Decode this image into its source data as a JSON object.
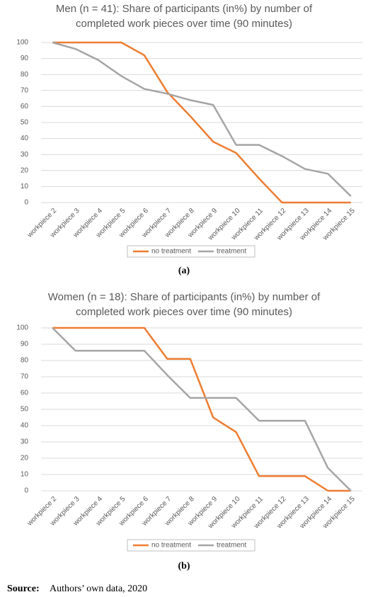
{
  "chart_data": [
    {
      "type": "line",
      "title": [
        "Men (n = 41): Share of participants (in%) by number of",
        "completed work pieces over time (90 minutes)"
      ],
      "categories": [
        "workpiece 2",
        "workpiece 3",
        "workpiece 4",
        "workpiece 5",
        "workpiece 6",
        "workpiece 7",
        "workpiece 8",
        "workpiece 9",
        "workpiece 10",
        "workpiece 11",
        "workpiece 12",
        "workpiece 13",
        "workpiece 14",
        "workpiece 15"
      ],
      "series": [
        {
          "name": "no treatment",
          "color": "#ed7d31",
          "values": [
            100,
            100,
            100,
            100,
            92,
            69,
            54,
            38,
            31,
            15,
            0,
            0,
            0,
            0
          ]
        },
        {
          "name": "treatment",
          "color": "#a5a5a5",
          "values": [
            100,
            96,
            89,
            79,
            71,
            68,
            64,
            61,
            36,
            36,
            29,
            21,
            18,
            4
          ]
        }
      ],
      "ylim": [
        0,
        100
      ],
      "yticks": [
        0,
        10,
        20,
        30,
        40,
        50,
        60,
        70,
        80,
        90,
        100
      ],
      "grid": true,
      "legend": "bottom",
      "caption": "(a)"
    },
    {
      "type": "line",
      "title": [
        "Women (n = 18): Share of participants (in%) by number of",
        "completed work pieces over time (90 minutes)"
      ],
      "categories": [
        "workpiece 2",
        "workpiece 3",
        "workpiece 4",
        "workpiece 5",
        "workpiece 6",
        "workpiece 7",
        "workpiece 8",
        "workpiece 9",
        "workpiece 10",
        "workpiece 11",
        "workpiece 12",
        "workpiece 13",
        "workpiece 14",
        "workpiece 15"
      ],
      "series": [
        {
          "name": "no treatment",
          "color": "#ed7d31",
          "values": [
            100,
            100,
            100,
            100,
            100,
            81,
            81,
            45,
            36,
            9,
            9,
            9,
            0,
            0
          ]
        },
        {
          "name": "treatment",
          "color": "#a5a5a5",
          "values": [
            100,
            86,
            86,
            86,
            86,
            71,
            57,
            57,
            57,
            43,
            43,
            43,
            14,
            0
          ]
        }
      ],
      "ylim": [
        0,
        100
      ],
      "yticks": [
        0,
        10,
        20,
        30,
        40,
        50,
        60,
        70,
        80,
        90,
        100
      ],
      "grid": true,
      "legend": "bottom",
      "caption": "(b)"
    }
  ],
  "source": {
    "label": "Source:",
    "text": "Authors’ own data, 2020"
  }
}
